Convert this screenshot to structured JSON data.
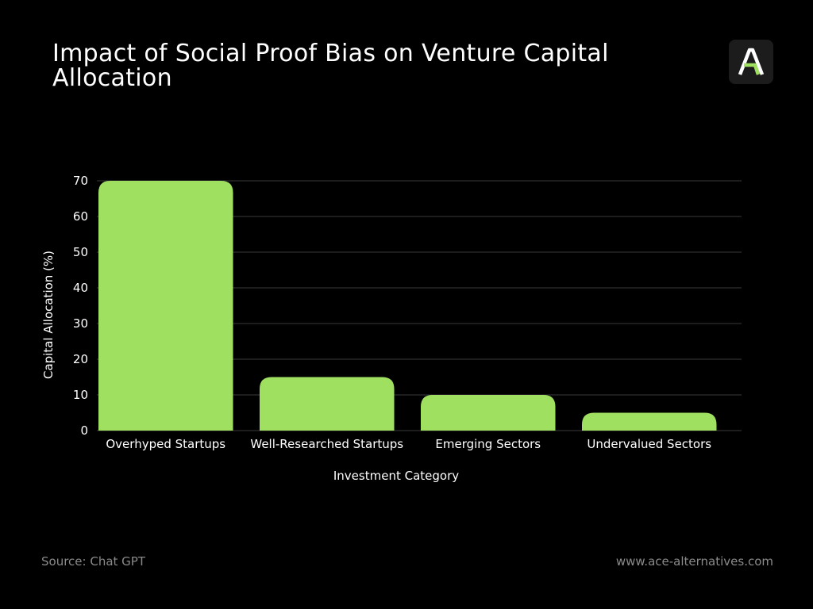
{
  "header": {
    "title": "Impact of Social Proof Bias on Venture Capital Allocation",
    "logo_icon": "ace-alternatives-logo-icon"
  },
  "chart_data": {
    "type": "bar",
    "categories": [
      "Overhyped Startups",
      "Well-Researched Startups",
      "Emerging Sectors",
      "Undervalued Sectors"
    ],
    "values": [
      70,
      15,
      10,
      5
    ],
    "title": "Impact of Social Proof Bias on Venture Capital Allocation",
    "xlabel": "Investment Category",
    "ylabel": "Capital Allocation (%)",
    "ylim": [
      0,
      70
    ],
    "yticks": [
      0,
      10,
      20,
      30,
      40,
      50,
      60,
      70
    ],
    "grid": true,
    "legend": "none",
    "bar_color": "#a0e060"
  },
  "footer": {
    "source": "Source: Chat GPT",
    "website": "www.ace-alternatives.com"
  },
  "colors": {
    "background": "#000000",
    "bar": "#a0e060",
    "grid": "#3a3a3a",
    "text": "#ffffff",
    "muted": "#8a8a8a",
    "logo_accent": "#a0e060"
  }
}
